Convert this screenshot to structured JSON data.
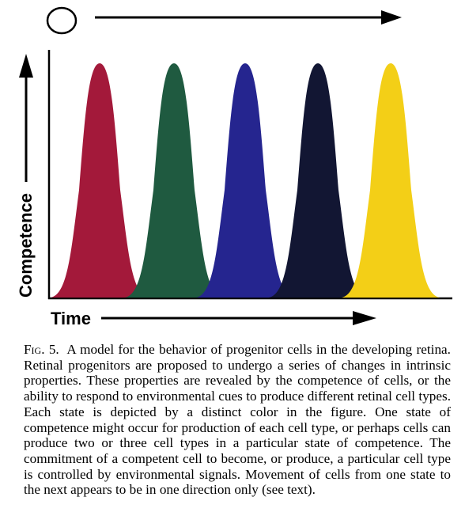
{
  "figure": {
    "y_axis_label": "Competence",
    "x_axis_label": "Time",
    "states": [
      {
        "color": "#a3193a"
      },
      {
        "color": "#1f5a40"
      },
      {
        "color": "#25258f"
      },
      {
        "color": "#121633"
      },
      {
        "color": "#f3cf17"
      }
    ],
    "top_arrow_symbol": "circle"
  },
  "caption": {
    "label": "Fig. 5.",
    "text": "A model for the behavior of progenitor cells in the developing retina. Retinal progenitors are proposed to undergo a series of changes in intrinsic properties. These properties are revealed by the competence of cells, or the ability to respond to environmental cues to produce different retinal cell types. Each state is depicted by a distinct color in the figure. One state of competence might occur for production of each cell type, or perhaps cells can produce two or three cell types in a particular state of competence. The commitment of a competent cell to become, or produce, a particular cell type is controlled by environmental signals. Movement of cells from one state to the next appears to be in one direction only (see text)."
  }
}
